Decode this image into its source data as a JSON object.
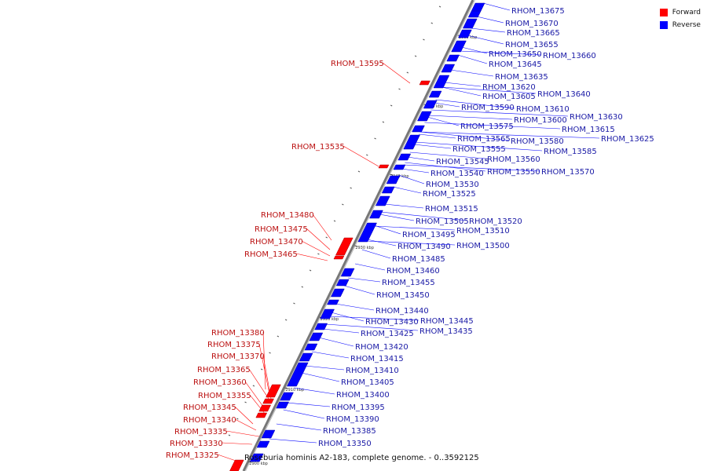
{
  "legend": {
    "forward_label": "Forward",
    "reverse_label": "Reverse",
    "forward_color": "#ff0000",
    "reverse_color": "#0000ff"
  },
  "caption": "Roseburia hominis A2-183, complete genome. - 0..3592125",
  "ticks": [
    "2960 kbp",
    "2950 kbp",
    "2940 kbp",
    "2930 kbp",
    "2920 kbp",
    "2910 kbp",
    "2900 kbp"
  ],
  "reverse_genes": [
    "RHOM_13675",
    "RHOM_13670",
    "RHOM_13665",
    "RHOM_13655",
    "RHOM_13650",
    "RHOM_13660",
    "RHOM_13645",
    "RHOM_13635",
    "RHOM_13620",
    "RHOM_13605",
    "RHOM_13640",
    "RHOM_13590",
    "RHOM_13610",
    "RHOM_13630",
    "RHOM_13600",
    "RHOM_13575",
    "RHOM_13615",
    "RHOM_13565",
    "RHOM_13580",
    "RHOM_13625",
    "RHOM_13555",
    "RHOM_13585",
    "RHOM_13560",
    "RHOM_13545",
    "RHOM_13550",
    "RHOM_13570",
    "RHOM_13540",
    "RHOM_13530",
    "RHOM_13525",
    "RHOM_13515",
    "RHOM_13520",
    "RHOM_13505",
    "RHOM_13510",
    "RHOM_13495",
    "RHOM_13490",
    "RHOM_13500",
    "RHOM_13485",
    "RHOM_13460",
    "RHOM_13455",
    "RHOM_13450",
    "RHOM_13440",
    "RHOM_13445",
    "RHOM_13430",
    "RHOM_13435",
    "RHOM_13425",
    "RHOM_13420",
    "RHOM_13415",
    "RHOM_13410",
    "RHOM_13405",
    "RHOM_13400",
    "RHOM_13395",
    "RHOM_13390",
    "RHOM_13385",
    "RHOM_13350"
  ],
  "forward_genes": [
    "RHOM_13595",
    "RHOM_13535",
    "RHOM_13480",
    "RHOM_13475",
    "RHOM_13470",
    "RHOM_13465",
    "RHOM_13380",
    "RHOM_13375",
    "RHOM_13370",
    "RHOM_13365",
    "RHOM_13360",
    "RHOM_13355",
    "RHOM_13345",
    "RHOM_13340",
    "RHOM_13335",
    "RHOM_13330",
    "RHOM_13325"
  ]
}
